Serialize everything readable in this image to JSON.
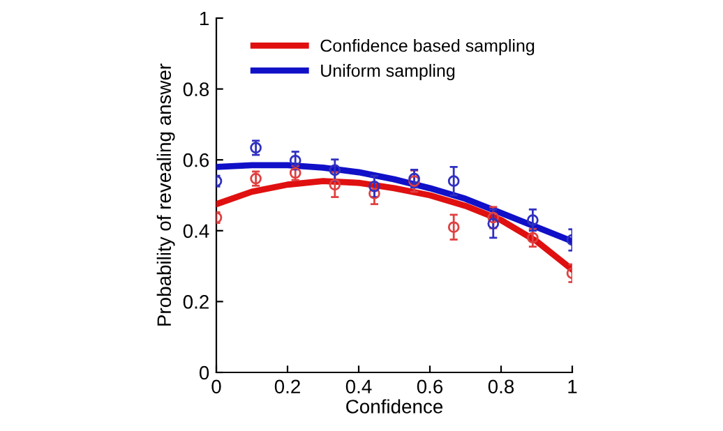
{
  "chart_data": {
    "type": "line",
    "xlabel": "Confidence",
    "ylabel": "Probability of revealing answer",
    "xlim": [
      0,
      1
    ],
    "ylim": [
      0,
      1
    ],
    "xticks": [
      0,
      0.2,
      0.4,
      0.6,
      0.8,
      1
    ],
    "yticks": [
      0,
      0.2,
      0.4,
      0.6,
      0.8,
      1
    ],
    "grid": false,
    "legend": "top",
    "line_style": "solid",
    "series": [
      {
        "name": "Confidence based sampling",
        "color": "#e01010",
        "x": [
          0,
          0.1,
          0.2,
          0.3,
          0.4,
          0.5,
          0.6,
          0.7,
          0.8,
          0.9,
          1
        ],
        "values": [
          0.475,
          0.51,
          0.53,
          0.54,
          0.535,
          0.52,
          0.5,
          0.47,
          0.43,
          0.37,
          0.29
        ]
      },
      {
        "name": "Uniform sampling",
        "color": "#1010c8",
        "x": [
          0,
          0.1,
          0.2,
          0.3,
          0.4,
          0.5,
          0.6,
          0.7,
          0.8,
          0.9,
          1
        ],
        "values": [
          0.58,
          0.585,
          0.585,
          0.578,
          0.565,
          0.545,
          0.52,
          0.49,
          0.45,
          0.41,
          0.37
        ]
      },
      {
        "color": "#e04040",
        "type": "scatter",
        "marker": "circle",
        "x": [
          0,
          0.111,
          0.222,
          0.333,
          0.444,
          0.556,
          0.667,
          0.778,
          0.889,
          1
        ],
        "values": [
          0.437,
          0.547,
          0.563,
          0.53,
          0.505,
          0.54,
          0.41,
          0.437,
          0.38,
          0.28
        ],
        "errors": [
          0.015,
          0.02,
          0.02,
          0.035,
          0.03,
          0.03,
          0.035,
          0.03,
          0.025,
          0.025
        ]
      },
      {
        "color": "#3030c0",
        "type": "scatter",
        "marker": "circle",
        "x": [
          0,
          0.111,
          0.222,
          0.333,
          0.444,
          0.556,
          0.667,
          0.778,
          0.889,
          1
        ],
        "values": [
          0.54,
          0.634,
          0.598,
          0.571,
          0.525,
          0.547,
          0.54,
          0.42,
          0.43,
          0.374
        ],
        "errors": [
          0.015,
          0.02,
          0.025,
          0.03,
          0.03,
          0.025,
          0.04,
          0.04,
          0.03,
          0.03
        ]
      }
    ]
  }
}
